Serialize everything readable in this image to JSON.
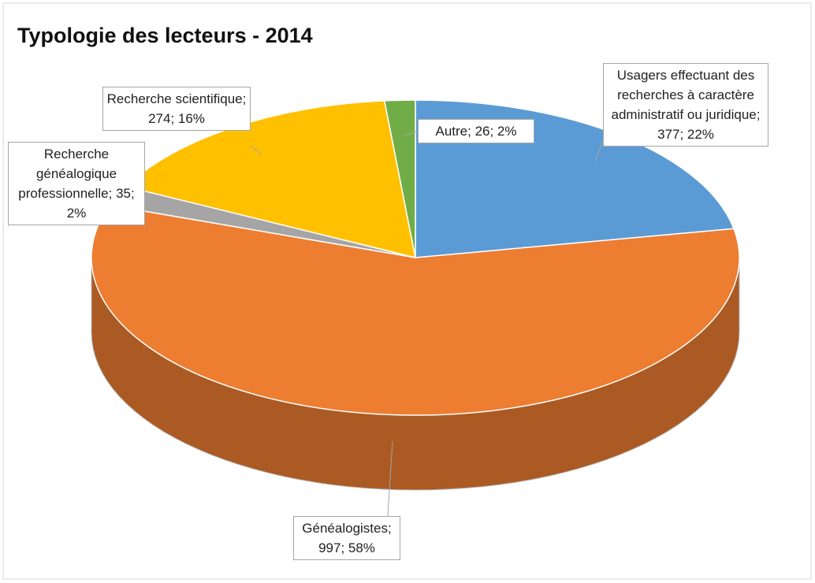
{
  "chart_data": {
    "type": "pie",
    "title": "Typologie des lecteurs - 2014",
    "values": [
      377,
      997,
      35,
      274,
      26
    ],
    "value_labels": [
      "Usagers effectuant des recherches à caractère administratif ou juridique; 377; 22%",
      "Généalogistes; 997; 58%",
      "Recherche généalogique professionnelle; 35; 2%",
      "Recherche scientifique; 274; 16%",
      "Autre; 26; 2%"
    ],
    "colors": [
      "#5b9bd5",
      "#ed7d31",
      "#a5a5a5",
      "#ffc000",
      "#70ad47"
    ]
  }
}
